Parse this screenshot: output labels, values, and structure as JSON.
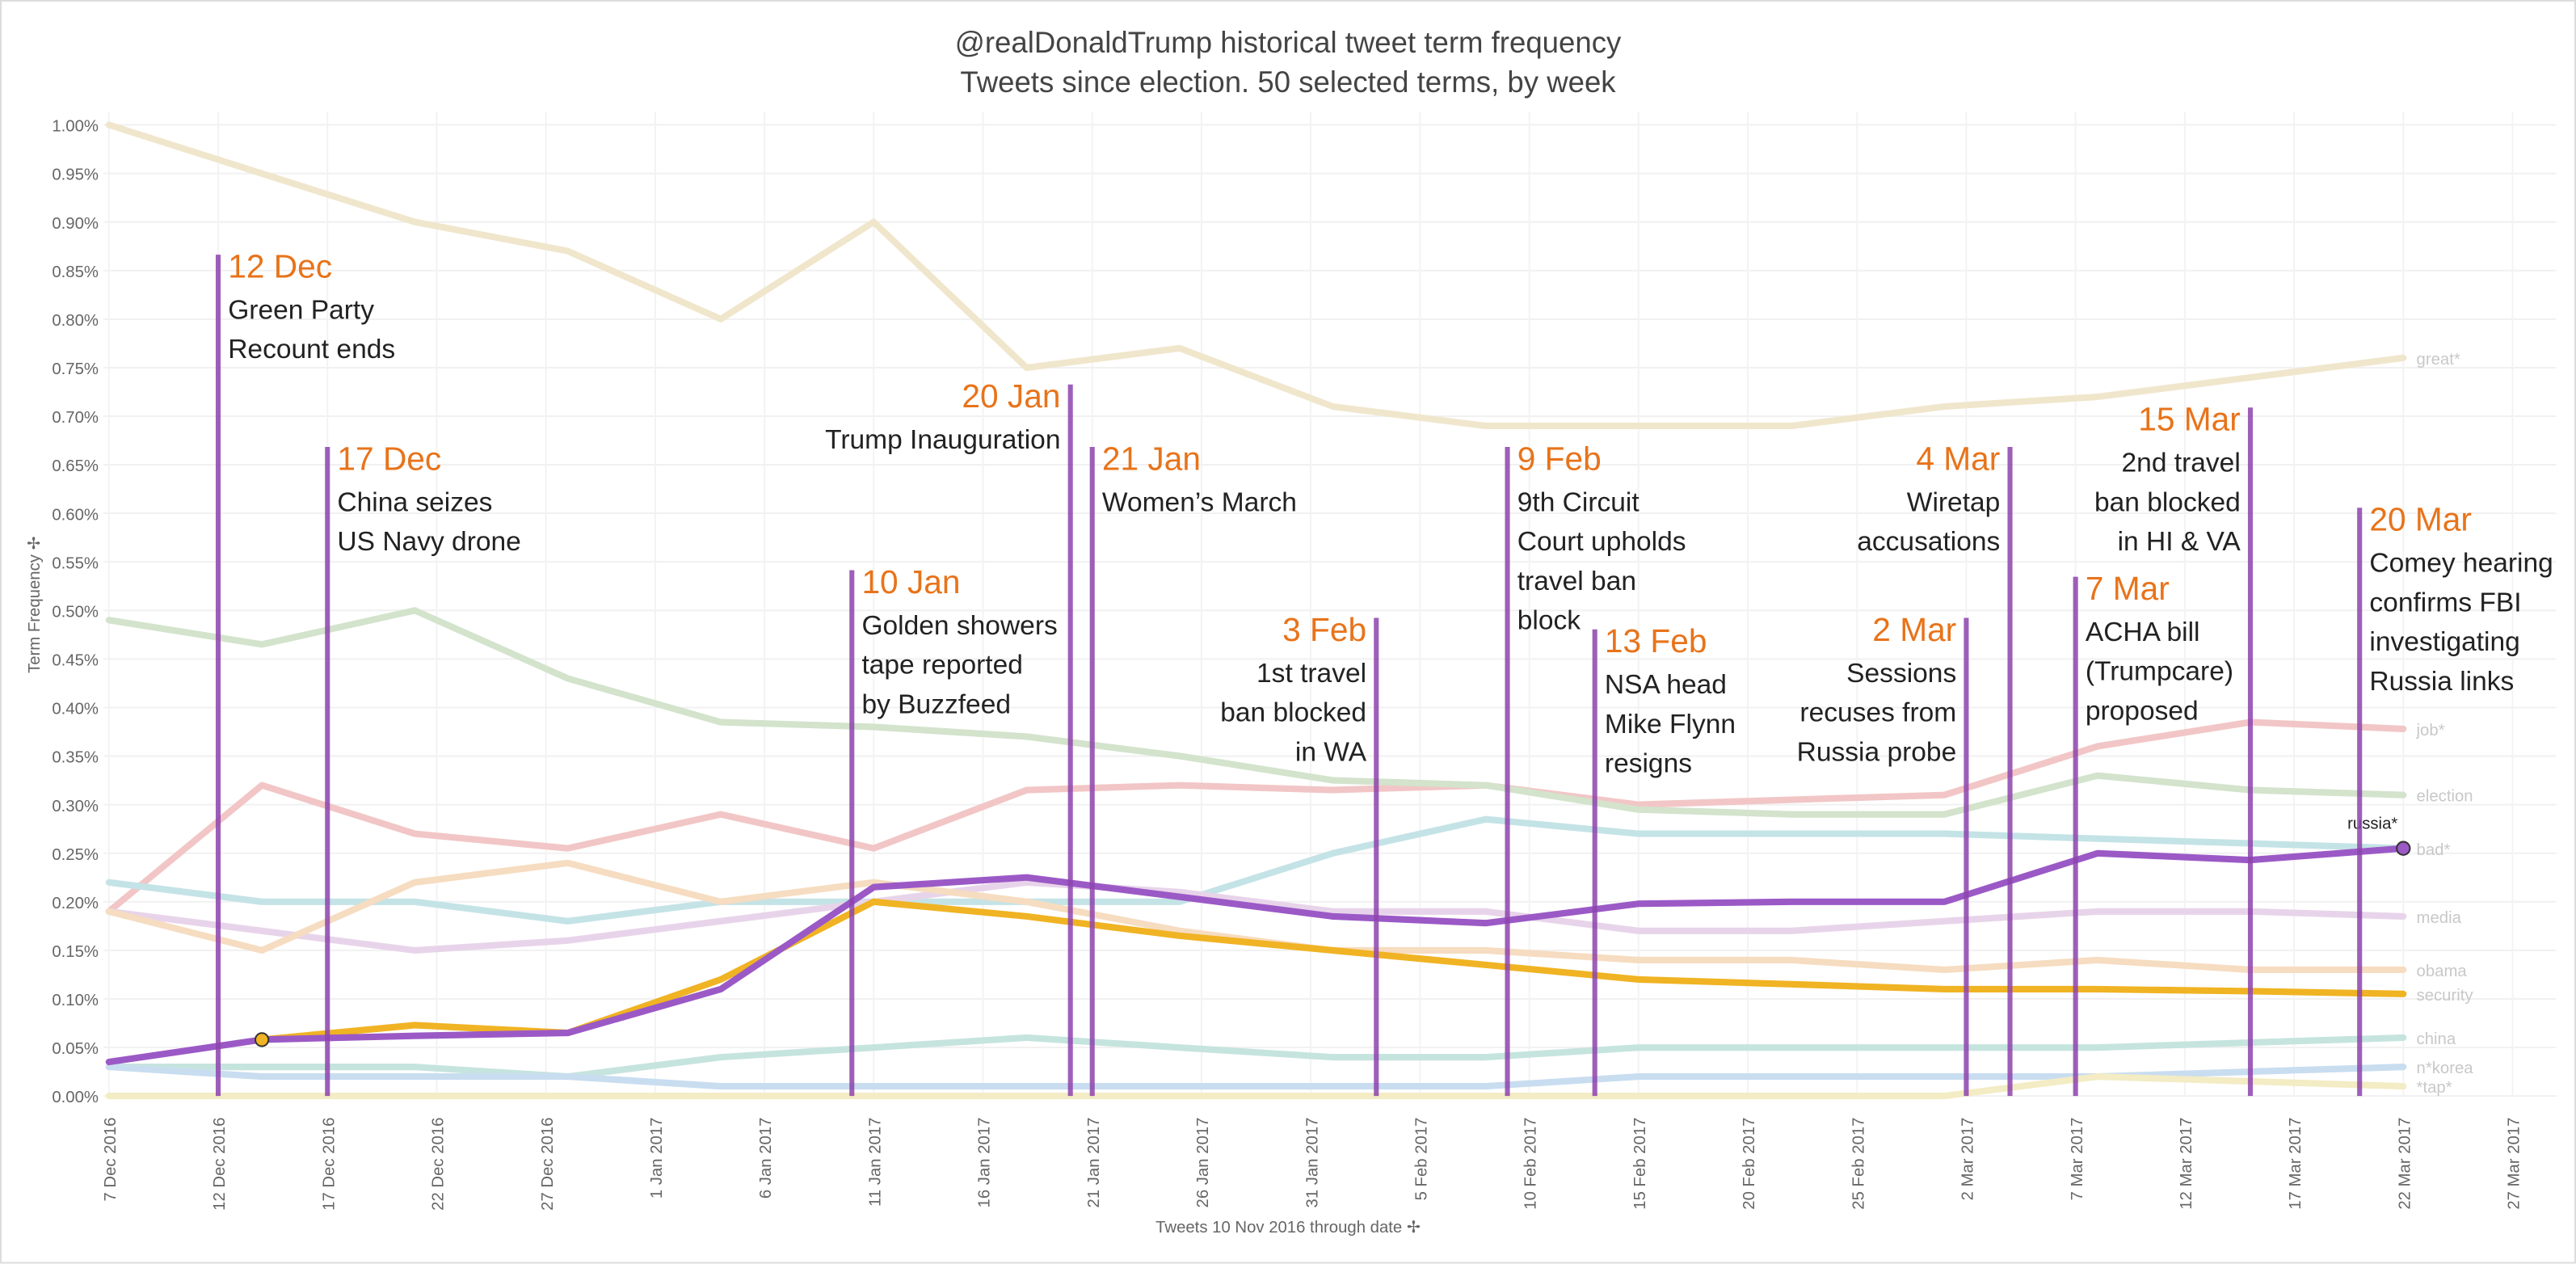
{
  "chart_data": {
    "type": "line",
    "title": "@realDonaldTrump historical tweet term frequency",
    "subtitle": "Tweets since election. 50 selected terms, by week",
    "xlabel": "Tweets 10 Nov 2016 through date ✢",
    "ylabel": "Term Frequency ✢",
    "x": [
      "2016-12-07",
      "2016-12-14",
      "2016-12-21",
      "2016-12-28",
      "2017-01-04",
      "2017-01-11",
      "2017-01-18",
      "2017-01-25",
      "2017-02-01",
      "2017-02-08",
      "2017-02-15",
      "2017-02-22",
      "2017-03-01",
      "2017-03-08",
      "2017-03-15",
      "2017-03-22"
    ],
    "xlim": [
      "2016-12-06",
      "2017-03-29"
    ],
    "xticks": [
      {
        "value": "2016-12-07",
        "label": "7 Dec 2016"
      },
      {
        "value": "2016-12-12",
        "label": "12 Dec 2016"
      },
      {
        "value": "2016-12-17",
        "label": "17 Dec 2016"
      },
      {
        "value": "2016-12-22",
        "label": "22 Dec 2016"
      },
      {
        "value": "2016-12-27",
        "label": "27 Dec 2016"
      },
      {
        "value": "2017-01-01",
        "label": "1 Jan 2017"
      },
      {
        "value": "2017-01-06",
        "label": "6 Jan 2017"
      },
      {
        "value": "2017-01-11",
        "label": "11 Jan 2017"
      },
      {
        "value": "2017-01-16",
        "label": "16 Jan 2017"
      },
      {
        "value": "2017-01-21",
        "label": "21 Jan 2017"
      },
      {
        "value": "2017-01-26",
        "label": "26 Jan 2017"
      },
      {
        "value": "2017-01-31",
        "label": "31 Jan 2017"
      },
      {
        "value": "2017-02-05",
        "label": "5 Feb 2017"
      },
      {
        "value": "2017-02-10",
        "label": "10 Feb 2017"
      },
      {
        "value": "2017-02-15",
        "label": "15 Feb 2017"
      },
      {
        "value": "2017-02-20",
        "label": "20 Feb 2017"
      },
      {
        "value": "2017-02-25",
        "label": "25 Feb 2017"
      },
      {
        "value": "2017-03-02",
        "label": "2 Mar 2017"
      },
      {
        "value": "2017-03-07",
        "label": "7 Mar 2017"
      },
      {
        "value": "2017-03-12",
        "label": "12 Mar 2017"
      },
      {
        "value": "2017-03-17",
        "label": "17 Mar 2017"
      },
      {
        "value": "2017-03-22",
        "label": "22 Mar 2017"
      },
      {
        "value": "2017-03-27",
        "label": "27 Mar 2017"
      }
    ],
    "ylim": [
      0,
      1
    ],
    "yticks": [
      {
        "value": 0,
        "label": "0.00%"
      },
      {
        "value": 0.05,
        "label": "0.05%"
      },
      {
        "value": 0.1,
        "label": "0.10%"
      },
      {
        "value": 0.15,
        "label": "0.15%"
      },
      {
        "value": 0.2,
        "label": "0.20%"
      },
      {
        "value": 0.25,
        "label": "0.25%"
      },
      {
        "value": 0.3,
        "label": "0.30%"
      },
      {
        "value": 0.35,
        "label": "0.35%"
      },
      {
        "value": 0.4,
        "label": "0.40%"
      },
      {
        "value": 0.45,
        "label": "0.45%"
      },
      {
        "value": 0.5,
        "label": "0.50%"
      },
      {
        "value": 0.55,
        "label": "0.55%"
      },
      {
        "value": 0.6,
        "label": "0.60%"
      },
      {
        "value": 0.65,
        "label": "0.65%"
      },
      {
        "value": 0.7,
        "label": "0.70%"
      },
      {
        "value": 0.75,
        "label": "0.75%"
      },
      {
        "value": 0.8,
        "label": "0.80%"
      },
      {
        "value": 0.85,
        "label": "0.85%"
      },
      {
        "value": 0.9,
        "label": "0.90%"
      },
      {
        "value": 0.95,
        "label": "0.95%"
      },
      {
        "value": 1,
        "label": "1.00%"
      }
    ],
    "grid": true,
    "series": [
      {
        "name": "great*",
        "color": "#f0e6cc",
        "line_width": 4,
        "values": [
          1.0,
          0.95,
          0.9,
          0.87,
          0.8,
          0.9,
          0.75,
          0.77,
          0.71,
          0.69,
          0.69,
          0.69,
          0.71,
          0.72,
          0.74,
          0.76
        ]
      },
      {
        "name": "job*",
        "color": "#f2c6c6",
        "line_width": 4,
        "values": [
          0.19,
          0.32,
          0.27,
          0.255,
          0.29,
          0.255,
          0.315,
          0.32,
          0.315,
          0.32,
          0.3,
          0.305,
          0.31,
          0.36,
          0.385,
          0.378
        ]
      },
      {
        "name": "election",
        "color": "#d3e3cc",
        "line_width": 4,
        "values": [
          0.49,
          0.465,
          0.5,
          0.43,
          0.385,
          0.38,
          0.37,
          0.35,
          0.325,
          0.32,
          0.295,
          0.29,
          0.29,
          0.33,
          0.315,
          0.31
        ]
      },
      {
        "name": "bad*",
        "color": "#c4e3e6",
        "line_width": 4,
        "values": [
          0.22,
          0.2,
          0.2,
          0.18,
          0.2,
          0.2,
          0.2,
          0.2,
          0.25,
          0.285,
          0.27,
          0.27,
          0.27,
          0.265,
          0.26,
          0.255
        ]
      },
      {
        "name": "media",
        "color": "#e8d4ea",
        "line_width": 4,
        "values": [
          0.19,
          0.17,
          0.15,
          0.16,
          0.18,
          0.2,
          0.22,
          0.21,
          0.19,
          0.19,
          0.17,
          0.17,
          0.18,
          0.19,
          0.19,
          0.185
        ]
      },
      {
        "name": "obama",
        "color": "#f6dcc0",
        "line_width": 4,
        "values": [
          0.19,
          0.15,
          0.22,
          0.24,
          0.2,
          0.22,
          0.2,
          0.17,
          0.15,
          0.15,
          0.14,
          0.14,
          0.13,
          0.14,
          0.13,
          0.13
        ]
      },
      {
        "name": "security",
        "color": "#f0b323",
        "line_width": 4,
        "values": [
          null,
          0.058,
          0.073,
          0.065,
          0.12,
          0.2,
          0.185,
          0.165,
          0.15,
          0.135,
          0.12,
          0.115,
          0.11,
          0.11,
          0.108,
          0.105
        ]
      },
      {
        "name": "china",
        "color": "#c6e4de",
        "line_width": 4,
        "values": [
          0.03,
          0.03,
          0.03,
          0.02,
          0.04,
          0.05,
          0.06,
          0.05,
          0.04,
          0.04,
          0.05,
          0.05,
          0.05,
          0.05,
          0.055,
          0.06
        ]
      },
      {
        "name": "n*korea",
        "color": "#c9ddf0",
        "line_width": 4,
        "values": [
          0.03,
          0.02,
          0.02,
          0.02,
          0.01,
          0.01,
          0.01,
          0.01,
          0.01,
          0.01,
          0.02,
          0.02,
          0.02,
          0.02,
          0.025,
          0.03
        ]
      },
      {
        "name": "*tap*",
        "color": "#f3ecc4",
        "line_width": 4,
        "values": [
          0,
          0,
          0,
          0,
          0,
          0,
          0,
          0,
          0,
          0,
          0,
          0,
          0,
          0.02,
          0.015,
          0.01
        ]
      },
      {
        "name": "russia*",
        "color": "#9b59c6",
        "line_width": 4,
        "values": [
          0.035,
          0.058,
          0.062,
          0.065,
          0.11,
          0.215,
          0.225,
          0.205,
          0.185,
          0.178,
          0.198,
          0.2,
          0.2,
          0.25,
          0.243,
          0.255
        ]
      }
    ],
    "annotation_line_color": "#8e44ad",
    "annotations": [
      {
        "x": "2016-12-12",
        "label": "12 Dec",
        "text": [
          "Green Party",
          "Recount ends"
        ]
      },
      {
        "x": "2016-12-17",
        "label": "17 Dec",
        "text": [
          "China seizes",
          "US Navy drone"
        ]
      },
      {
        "x": "2017-01-10",
        "label": "10 Jan",
        "text": [
          "Golden showers",
          "tape reported",
          "by Buzzfeed"
        ]
      },
      {
        "x": "2017-01-20",
        "label": "20 Jan",
        "text": [
          "Trump Inauguration"
        ]
      },
      {
        "x": "2017-01-21",
        "label": "21 Jan",
        "text": [
          "Women’s March"
        ]
      },
      {
        "x": "2017-02-03",
        "label": "3 Feb",
        "text": [
          "1st travel",
          "ban blocked",
          "in WA"
        ]
      },
      {
        "x": "2017-02-09",
        "label": "9 Feb",
        "text": [
          "9th Circuit",
          "Court upholds",
          "travel ban",
          "block"
        ]
      },
      {
        "x": "2017-02-13",
        "label": "13 Feb",
        "text": [
          "NSA head",
          "Mike Flynn",
          "resigns"
        ]
      },
      {
        "x": "2017-03-02",
        "label": "2 Mar",
        "text": [
          "Sessions",
          "recuses from",
          "Russia probe"
        ]
      },
      {
        "x": "2017-03-04",
        "label": "4 Mar",
        "text": [
          "Wiretap",
          "accusations"
        ]
      },
      {
        "x": "2017-03-07",
        "label": "7 Mar",
        "text": [
          "ACHA bill",
          "(Trumpcare)",
          "proposed"
        ]
      },
      {
        "x": "2017-03-15",
        "label": "15 Mar",
        "text": [
          "2nd travel",
          "ban blocked",
          "in HI & VA"
        ]
      },
      {
        "x": "2017-03-20",
        "label": "20 Mar",
        "text": [
          "Comey hearing",
          "confirms FBI",
          "investigating",
          "Russia links"
        ]
      }
    ]
  }
}
